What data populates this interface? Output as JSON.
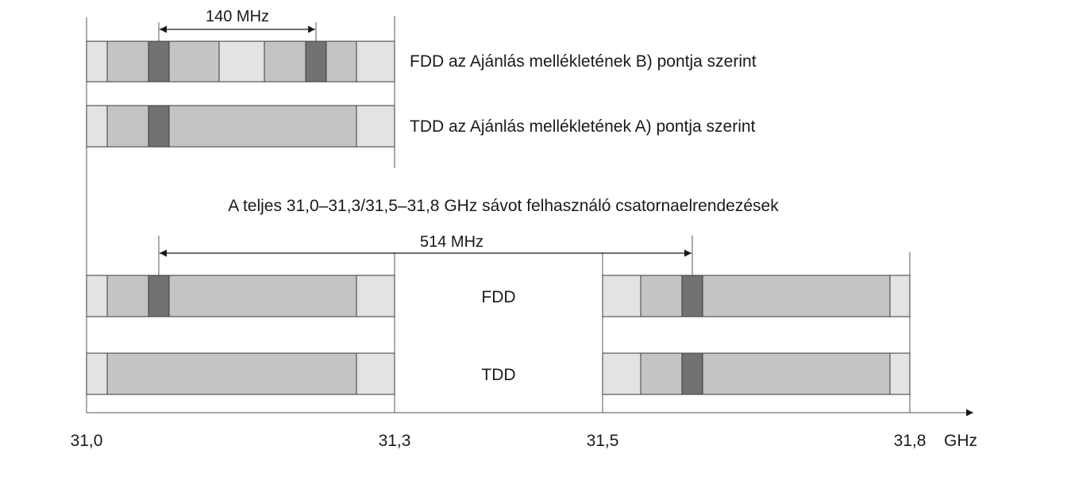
{
  "labels": {
    "spacing_top": "140 MHz",
    "fdd_b": "FDD az Ajánlás mellékletének B) pontja szerint",
    "tdd_a": "TDD az Ajánlás mellékletének A) pontja szerint",
    "full_band": "A teljes 31,0–31,3/31,5–31,8 GHz sávot felhasználó csatornaelrendezések",
    "spacing_bottom": "514 MHz",
    "fdd": "FDD",
    "tdd": "TDD"
  },
  "axis": {
    "ticks": [
      "31,0",
      "31,3",
      "31,5",
      "31,8"
    ],
    "unit": "GHz"
  },
  "colors": {
    "light": "#e3e3e3",
    "medium": "#c4c4c4",
    "dark": "#727272",
    "outline": "#3a3a3a"
  }
}
